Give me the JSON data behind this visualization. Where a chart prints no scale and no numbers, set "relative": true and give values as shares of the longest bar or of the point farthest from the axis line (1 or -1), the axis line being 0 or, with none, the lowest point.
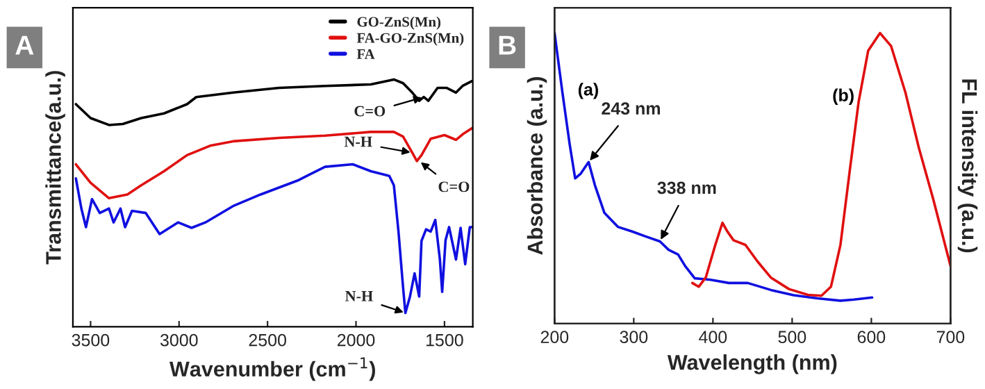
{
  "chart_data": [
    {
      "type": "line",
      "title": "A",
      "xlabel": "Wavenumber (cm$^{−1}$)",
      "ylabel": "Transmittance(a.u.)",
      "relative": true,
      "xlim": [
        3600,
        1340
      ],
      "xticks": [
        3500,
        3000,
        2500,
        2000,
        1500
      ],
      "tick_labels": "x",
      "legend": "top right",
      "grid": false,
      "series": [
        {
          "name": "GO-ZnS(Mn)",
          "color": "#000000",
          "x": [
            3583,
            3500,
            3396,
            3318,
            3214,
            3085,
            2955,
            2903,
            2695,
            2435,
            2175,
            1916,
            1786,
            1734,
            1682,
            1643,
            1617,
            1591,
            1539,
            1487,
            1435,
            1396,
            1344
          ],
          "values": [
            0.9,
            0.844,
            0.816,
            0.82,
            0.844,
            0.863,
            0.9,
            0.929,
            0.947,
            0.966,
            0.974,
            0.98,
            1.0,
            0.985,
            0.947,
            0.914,
            0.929,
            0.914,
            0.966,
            0.966,
            0.947,
            0.975,
            0.994
          ]
        },
        {
          "name": "FA-GO-ZnS(Mn)",
          "color": "#e01010",
          "x": [
            3583,
            3500,
            3396,
            3292,
            3214,
            3085,
            2955,
            2825,
            2695,
            2435,
            2175,
            1916,
            1786,
            1734,
            1682,
            1656,
            1630,
            1578,
            1500,
            1435,
            1396,
            1344
          ],
          "values": [
            0.657,
            0.582,
            0.52,
            0.535,
            0.572,
            0.629,
            0.694,
            0.732,
            0.75,
            0.764,
            0.773,
            0.788,
            0.788,
            0.769,
            0.704,
            0.67,
            0.694,
            0.76,
            0.775,
            0.756,
            0.779,
            0.803
          ]
        },
        {
          "name": "FA",
          "color": "#1010e0",
          "x": [
            3583,
            3552,
            3526,
            3492,
            3448,
            3396,
            3370,
            3331,
            3305,
            3266,
            3188,
            3110,
            3006,
            2929,
            2851,
            2695,
            2539,
            2331,
            2175,
            2019,
            1916,
            1812,
            1786,
            1760,
            1734,
            1721,
            1695,
            1669,
            1643,
            1630,
            1604,
            1578,
            1552,
            1526,
            1513,
            1494,
            1474,
            1435,
            1409,
            1383,
            1357,
            1344
          ],
          "values": [
            0.6,
            0.478,
            0.403,
            0.516,
            0.46,
            0.478,
            0.422,
            0.478,
            0.403,
            0.469,
            0.46,
            0.375,
            0.422,
            0.4,
            0.422,
            0.488,
            0.535,
            0.591,
            0.647,
            0.657,
            0.629,
            0.61,
            0.572,
            0.385,
            0.159,
            0.056,
            0.122,
            0.216,
            0.122,
            0.347,
            0.394,
            0.385,
            0.432,
            0.272,
            0.141,
            0.35,
            0.403,
            0.272,
            0.4,
            0.253,
            0.403,
            0.403
          ]
        }
      ],
      "annotations": [
        {
          "text": "C=O",
          "x": 1617,
          "y": 0.929
        },
        {
          "text": "N-H",
          "x": 1682,
          "y": 0.704
        },
        {
          "text": "C=O",
          "x": 1643,
          "y": 0.67
        },
        {
          "text": "N-H",
          "x": 1721,
          "y": 0.056
        }
      ]
    },
    {
      "type": "line",
      "title": "B",
      "xlabel": "Wavelength (nm)",
      "ylabel": "Absorbance (a.u.)",
      "y2label": "FL intensity (a.u.)",
      "relative": true,
      "xlim": [
        200,
        700
      ],
      "xticks": [
        200,
        300,
        400,
        500,
        600,
        700
      ],
      "tick_labels": "x",
      "grid": false,
      "series": [
        {
          "name": "(a)",
          "color": "#1010e0",
          "x": [
            200,
            210,
            219,
            226,
            233,
            243,
            251,
            263,
            280,
            298,
            315,
            333,
            344,
            356,
            365,
            377,
            397,
            420,
            444,
            473,
            502,
            532,
            561,
            578,
            601
          ],
          "values": [
            1.0,
            0.794,
            0.619,
            0.5,
            0.516,
            0.556,
            0.476,
            0.381,
            0.333,
            0.317,
            0.3,
            0.283,
            0.254,
            0.238,
            0.198,
            0.156,
            0.151,
            0.14,
            0.14,
            0.116,
            0.098,
            0.087,
            0.079,
            0.083,
            0.09
          ]
        },
        {
          "name": "(b)",
          "color": "#e01010",
          "axis": "y2",
          "x": [
            374,
            382,
            391,
            403,
            412,
            418,
            426,
            441,
            456,
            473,
            496,
            520,
            537,
            549,
            561,
            572,
            584,
            596,
            611,
            625,
            643,
            660,
            678,
            700
          ],
          "values": [
            0.14,
            0.127,
            0.159,
            0.271,
            0.347,
            0.318,
            0.287,
            0.271,
            0.215,
            0.159,
            0.119,
            0.099,
            0.096,
            0.127,
            0.271,
            0.51,
            0.764,
            0.939,
            1.0,
            0.955,
            0.796,
            0.605,
            0.43,
            0.199
          ]
        }
      ],
      "annotations": [
        {
          "text": "243 nm",
          "x": 243,
          "y": 0.556
        },
        {
          "text": "338 nm",
          "x": 333,
          "y": 0.283
        }
      ]
    }
  ]
}
